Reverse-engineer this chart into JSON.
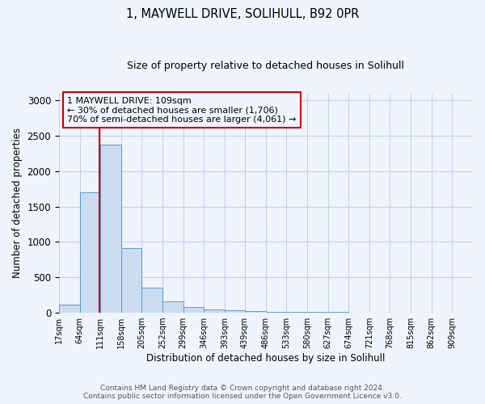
{
  "title1": "1, MAYWELL DRIVE, SOLIHULL, B92 0PR",
  "title2": "Size of property relative to detached houses in Solihull",
  "xlabel": "Distribution of detached houses by size in Solihull",
  "ylabel": "Number of detached properties",
  "bar_edges": [
    17,
    64,
    111,
    158,
    205,
    252,
    299,
    346,
    393,
    439,
    486,
    533,
    580,
    627,
    674,
    721,
    768,
    815,
    862,
    909,
    956
  ],
  "bar_heights": [
    120,
    1700,
    2380,
    920,
    350,
    160,
    85,
    50,
    35,
    25,
    18,
    12,
    10,
    8,
    6,
    5,
    4,
    4,
    3,
    3
  ],
  "bar_color": "#ccdcf0",
  "bar_edge_color": "#5a9ad5",
  "property_size": 109,
  "annotation_line1": "1 MAYWELL DRIVE: 109sqm",
  "annotation_line2": "← 30% of detached houses are smaller (1,706)",
  "annotation_line3": "70% of semi-detached houses are larger (4,061) →",
  "vline_color": "#cc0000",
  "annotation_box_color": "#cc0000",
  "ylim": [
    0,
    3100
  ],
  "footer1": "Contains HM Land Registry data © Crown copyright and database right 2024.",
  "footer2": "Contains public sector information licensed under the Open Government Licence v3.0.",
  "bg_color": "#f0f4ff",
  "grid_color": "#c8d0e8"
}
